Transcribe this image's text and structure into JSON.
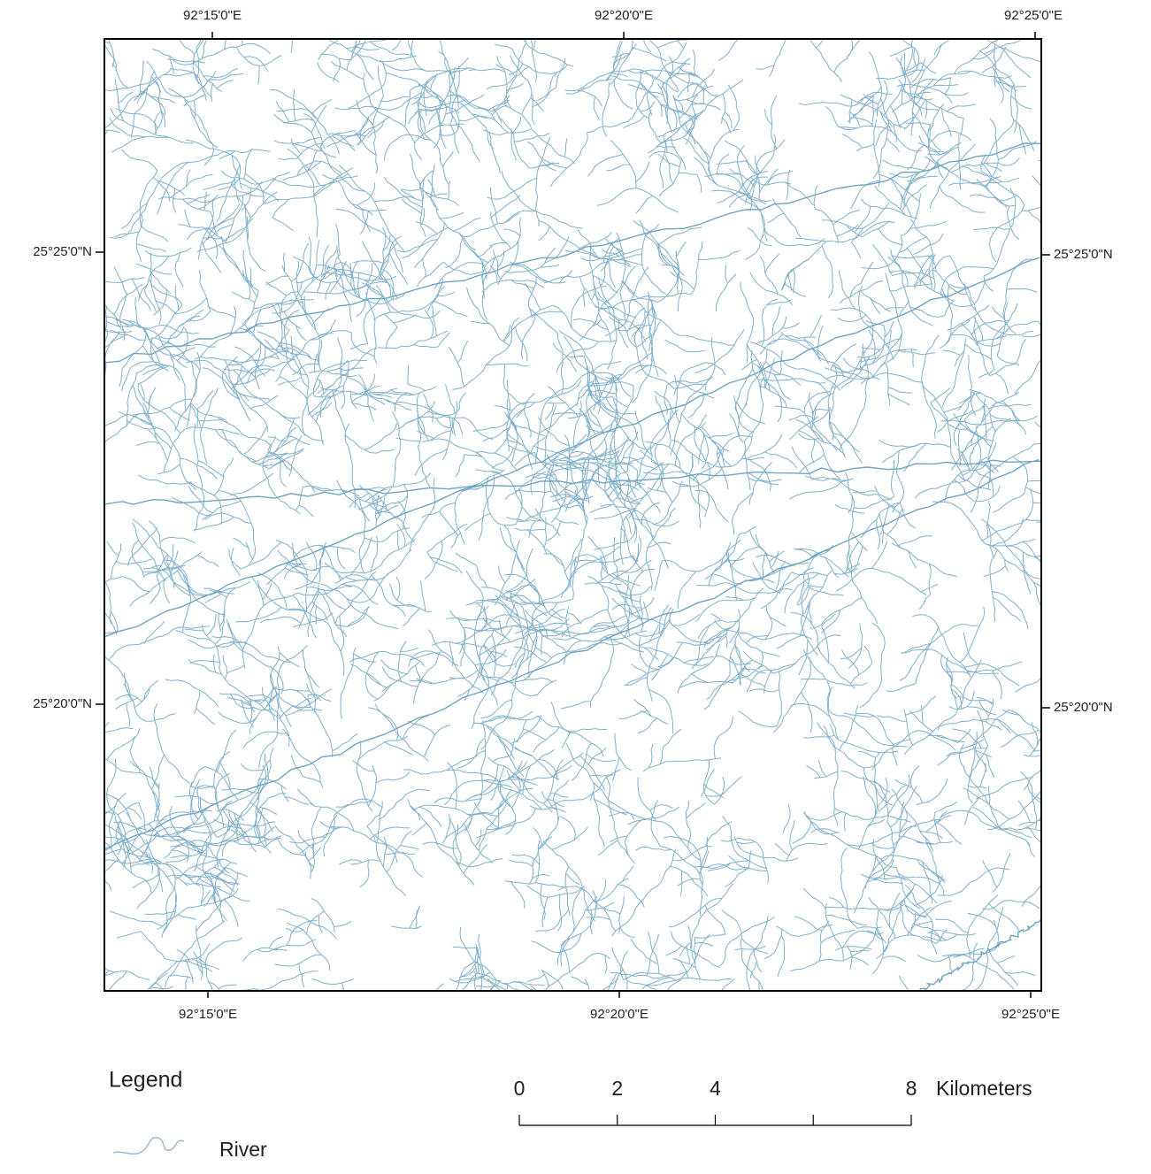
{
  "map": {
    "longitude_labels": [
      "92°15'0\"E",
      "92°20'0\"E",
      "92°25'0\"E"
    ],
    "latitude_labels": [
      "25°25'0\"N",
      "25°20'0\"N"
    ],
    "legend": {
      "title": "Legend",
      "items": [
        "River"
      ]
    },
    "scale_bar": {
      "ticks": [
        0,
        2,
        4,
        8
      ],
      "unit": "Kilometers"
    }
  }
}
